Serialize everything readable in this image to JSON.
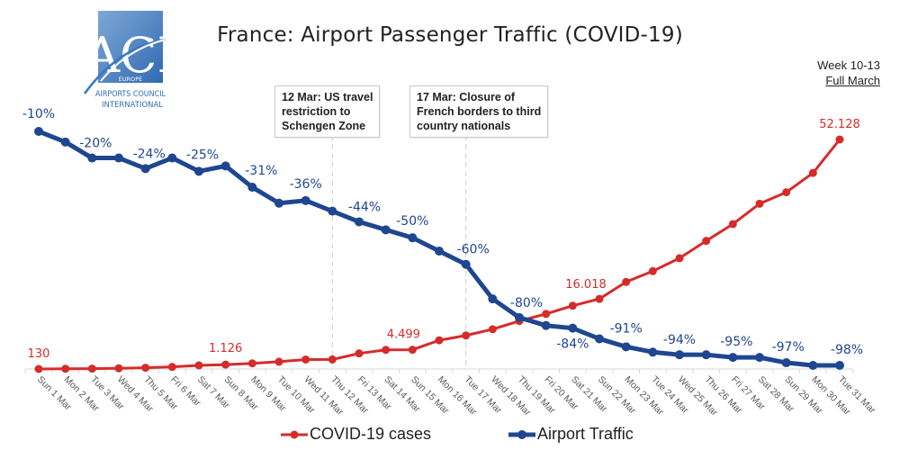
{
  "logo": {
    "letters": "ACI",
    "region": "EUROPE",
    "line1": "AIRPORTS COUNCIL",
    "line2": "INTERNATIONAL",
    "color": "#2f6db5"
  },
  "header": {
    "week": "Week 10-13",
    "period": "Full March"
  },
  "annotations": [
    {
      "date": "Thu 12 Mar",
      "lines": [
        "12 Mar: US travel",
        "restriction to",
        "Schengen Zone"
      ]
    },
    {
      "date": "Tue 17 Mar",
      "lines": [
        "17 Mar: Closure of",
        "French borders to third",
        "country nationals"
      ]
    }
  ],
  "chart_data": {
    "type": "line",
    "title": "France: Airport Passenger Traffic (COVID-19)",
    "xlabel": "",
    "ylabel": "",
    "grid": false,
    "legend_position": "bottom",
    "categories": [
      "Sun 1 Mar",
      "Mon 2 Mar",
      "Tue 3 Mar",
      "Wed 4 Mar",
      "Thu 5 Mar",
      "Fri 6 Mar",
      "Sat 7 Mar",
      "Sun 8 Mar",
      "Mon 9 Mar",
      "Tue 10 Mar",
      "Wed 11 Mar",
      "Thu 12 Mar",
      "Fri 13 Mar",
      "Sat 14 Mar",
      "Sun 15 Mar",
      "Mon 16 Mar",
      "Tue 17 Mar",
      "Wed 18 Mar",
      "Thu 19 Mar",
      "Fri 20 Mar",
      "Sat 21 Mar",
      "Sun 22 Mar",
      "Mon 23 Mar",
      "Tue 24 Mar",
      "Wed 25 Mar",
      "Thu 26 Mar",
      "Fri 27 Mar",
      "Sat 28 Mar",
      "Sun 29 Mar",
      "Mon 30 Mar",
      "Tue 31 Mar"
    ],
    "series": [
      {
        "name": "COVID-19 cases",
        "color": "#d62b2b",
        "unit": "cases",
        "ylim": [
          0,
          52128
        ],
        "values": [
          130,
          191,
          212,
          285,
          423,
          613,
          949,
          1126,
          1412,
          1784,
          2281,
          2284,
          3661,
          4469,
          4499,
          6633,
          7730,
          9134,
          10995,
          12612,
          14459,
          16018,
          19856,
          22304,
          25233,
          29155,
          32964,
          37575,
          40174,
          44550,
          52128
        ],
        "labels": [
          {
            "index": 0,
            "text": "130"
          },
          {
            "index": 7,
            "text": "1.126"
          },
          {
            "index": 14,
            "text": "4.499"
          },
          {
            "index": 21,
            "text": "16.018"
          },
          {
            "index": 30,
            "text": "52.128"
          }
        ]
      },
      {
        "name": "Airport Traffic",
        "color": "#1f4690",
        "unit": "percent change",
        "ylim": [
          -100,
          0
        ],
        "values": [
          -10,
          -14,
          -20,
          -20,
          -24,
          -20,
          -25,
          -23,
          -31,
          -37,
          -36,
          -40,
          -44,
          -47,
          -50,
          -55,
          -60,
          -73,
          -80,
          -83,
          -84,
          -88,
          -91,
          -93,
          -94,
          -94,
          -95,
          -95,
          -97,
          -98,
          -98
        ],
        "labels": [
          {
            "index": 0,
            "text": "-10%"
          },
          {
            "index": 2,
            "text": "-20%"
          },
          {
            "index": 4,
            "text": "-24%"
          },
          {
            "index": 6,
            "text": "-25%"
          },
          {
            "index": 8,
            "text": "-31%"
          },
          {
            "index": 10,
            "text": "-36%"
          },
          {
            "index": 12,
            "text": "-44%"
          },
          {
            "index": 14,
            "text": "-50%"
          },
          {
            "index": 16,
            "text": "-60%"
          },
          {
            "index": 18,
            "text": "-80%"
          },
          {
            "index": 20,
            "text": "-84%"
          },
          {
            "index": 22,
            "text": "-91%"
          },
          {
            "index": 24,
            "text": "-94%"
          },
          {
            "index": 26,
            "text": "-95%"
          },
          {
            "index": 28,
            "text": "-97%"
          },
          {
            "index": 30,
            "text": "-98%"
          }
        ]
      }
    ]
  }
}
